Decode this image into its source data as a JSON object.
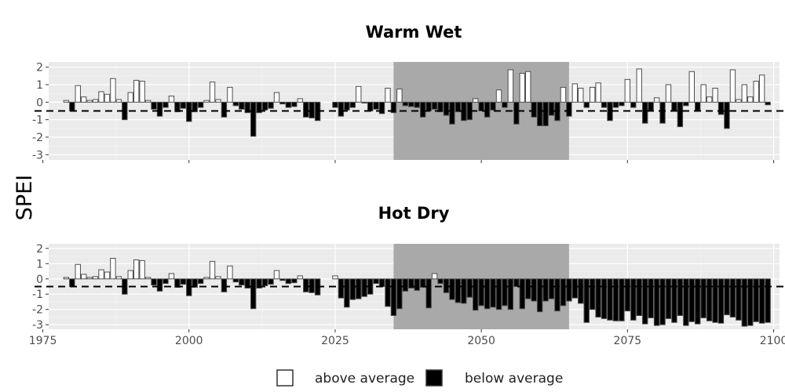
{
  "chart_data": {
    "type": "bar",
    "ylabel": "SPEI",
    "ylim": [
      -3.3,
      2.3
    ],
    "xlim": [
      1976,
      2101
    ],
    "x_ticks": [
      1975,
      2000,
      2025,
      2050,
      2075,
      2100
    ],
    "y_ticks": [
      2,
      1,
      0,
      -1,
      -2,
      -3
    ],
    "reference_line": -0.5,
    "highlight_period": [
      2035,
      2065
    ],
    "grid": true,
    "legend": {
      "placement": "bottom",
      "items": [
        {
          "label": "above average",
          "fill": "#ffffff"
        },
        {
          "label": "below average",
          "fill": "#000000"
        }
      ]
    },
    "panels": [
      {
        "title": "Warm Wet",
        "x": [
          1979,
          1980,
          1981,
          1982,
          1983,
          1984,
          1985,
          1986,
          1987,
          1988,
          1989,
          1990,
          1991,
          1992,
          1993,
          1994,
          1995,
          1996,
          1997,
          1998,
          1999,
          2000,
          2001,
          2002,
          2003,
          2004,
          2005,
          2006,
          2007,
          2008,
          2009,
          2010,
          2011,
          2012,
          2013,
          2014,
          2015,
          2016,
          2017,
          2018,
          2019,
          2020,
          2021,
          2022,
          2025,
          2026,
          2027,
          2028,
          2029,
          2030,
          2031,
          2032,
          2033,
          2034,
          2035,
          2036,
          2037,
          2038,
          2039,
          2040,
          2041,
          2042,
          2043,
          2044,
          2045,
          2046,
          2047,
          2048,
          2049,
          2050,
          2051,
          2052,
          2053,
          2054,
          2055,
          2056,
          2057,
          2058,
          2059,
          2060,
          2061,
          2062,
          2063,
          2064,
          2065,
          2066,
          2067,
          2068,
          2069,
          2070,
          2071,
          2072,
          2073,
          2074,
          2075,
          2076,
          2077,
          2078,
          2079,
          2080,
          2081,
          2082,
          2083,
          2084,
          2085,
          2086,
          2087,
          2088,
          2089,
          2090,
          2091,
          2092,
          2093,
          2094,
          2095,
          2096,
          2097,
          2098,
          2099
        ],
        "values": [
          0.1,
          -0.5,
          0.95,
          0.3,
          0.1,
          0.15,
          0.6,
          0.45,
          1.35,
          0.15,
          -1.0,
          0.55,
          1.25,
          1.2,
          0.1,
          -0.4,
          -0.8,
          -0.3,
          0.35,
          -0.55,
          -0.35,
          -1.1,
          -0.55,
          -0.3,
          0.1,
          1.15,
          0.15,
          -0.85,
          0.85,
          -0.2,
          -0.4,
          -0.6,
          -1.95,
          -0.6,
          -0.45,
          -0.35,
          0.55,
          -0.1,
          -0.3,
          -0.25,
          0.2,
          -0.85,
          -0.9,
          -1.05,
          -0.3,
          -0.8,
          -0.45,
          -0.3,
          0.9,
          -0.05,
          -0.5,
          -0.4,
          -0.65,
          0.8,
          -0.6,
          0.75,
          -0.2,
          -0.25,
          -0.3,
          -0.85,
          -0.5,
          -0.4,
          -0.55,
          -0.75,
          -1.25,
          -0.55,
          -1.05,
          -1.0,
          0.2,
          -0.5,
          -0.85,
          -0.45,
          0.7,
          -0.3,
          1.85,
          -1.25,
          1.65,
          1.75,
          -0.85,
          -1.35,
          -1.35,
          -0.75,
          -1.05,
          0.85,
          -0.8,
          1.05,
          0.8,
          -0.3,
          0.85,
          1.1,
          -0.3,
          -1.05,
          -0.3,
          -0.2,
          1.3,
          -0.3,
          1.9,
          -1.2,
          -0.5,
          0.25,
          -1.2,
          1.0,
          -0.5,
          -1.4,
          -0.2,
          1.75,
          -0.5,
          1.0,
          0.3,
          0.8,
          -0.7,
          -1.5,
          1.85,
          0.15,
          1.0,
          0.3,
          1.2,
          1.55,
          -0.15
        ]
      },
      {
        "title": "Hot Dry",
        "x": [
          1979,
          1980,
          1981,
          1982,
          1983,
          1984,
          1985,
          1986,
          1987,
          1988,
          1989,
          1990,
          1991,
          1992,
          1993,
          1994,
          1995,
          1996,
          1997,
          1998,
          1999,
          2000,
          2001,
          2002,
          2003,
          2004,
          2005,
          2006,
          2007,
          2008,
          2009,
          2010,
          2011,
          2012,
          2013,
          2014,
          2015,
          2016,
          2017,
          2018,
          2019,
          2020,
          2021,
          2022,
          2025,
          2026,
          2027,
          2028,
          2029,
          2030,
          2031,
          2032,
          2033,
          2034,
          2035,
          2036,
          2037,
          2038,
          2039,
          2040,
          2041,
          2042,
          2043,
          2044,
          2045,
          2046,
          2047,
          2048,
          2049,
          2050,
          2051,
          2052,
          2053,
          2054,
          2055,
          2056,
          2057,
          2058,
          2059,
          2060,
          2061,
          2062,
          2063,
          2064,
          2065,
          2066,
          2067,
          2068,
          2069,
          2070,
          2071,
          2072,
          2073,
          2074,
          2075,
          2076,
          2077,
          2078,
          2079,
          2080,
          2081,
          2082,
          2083,
          2084,
          2085,
          2086,
          2087,
          2088,
          2089,
          2090,
          2091,
          2092,
          2093,
          2094,
          2095,
          2096,
          2097,
          2098,
          2099
        ],
        "values": [
          0.1,
          -0.5,
          0.95,
          0.3,
          0.1,
          0.15,
          0.6,
          0.45,
          1.35,
          0.15,
          -1.0,
          0.55,
          1.25,
          1.2,
          0.1,
          -0.4,
          -0.8,
          -0.3,
          0.35,
          -0.55,
          -0.35,
          -1.1,
          -0.55,
          -0.3,
          0.1,
          1.15,
          0.15,
          -0.85,
          0.85,
          -0.2,
          -0.4,
          -0.6,
          -1.95,
          -0.6,
          -0.45,
          -0.35,
          0.55,
          -0.1,
          -0.3,
          -0.25,
          0.2,
          -0.85,
          -0.9,
          -1.05,
          0.2,
          -1.25,
          -1.85,
          -1.35,
          -1.3,
          -1.15,
          -1.0,
          -0.3,
          -0.5,
          -1.8,
          -2.4,
          -1.95,
          -0.8,
          -0.6,
          -0.75,
          -0.55,
          -1.9,
          0.35,
          -0.3,
          -0.9,
          -1.35,
          -1.55,
          -1.6,
          -1.2,
          -2.05,
          -1.75,
          -1.95,
          -1.85,
          -2.0,
          -1.75,
          -2.0,
          -0.5,
          -1.95,
          -1.3,
          -1.45,
          -2.15,
          -1.45,
          -1.3,
          -2.1,
          -1.75,
          -1.45,
          -1.25,
          -1.6,
          -2.85,
          -2.0,
          -2.5,
          -2.6,
          -2.7,
          -2.75,
          -2.75,
          -2.1,
          -2.7,
          -2.4,
          -2.95,
          -2.55,
          -3.05,
          -3.0,
          -2.6,
          -2.85,
          -2.4,
          -3.05,
          -2.8,
          -2.95,
          -2.55,
          -2.75,
          -2.85,
          -2.9,
          -2.35,
          -2.5,
          -2.7,
          -3.1,
          -3.05,
          -2.8,
          -2.9,
          -2.85
        ]
      }
    ]
  }
}
